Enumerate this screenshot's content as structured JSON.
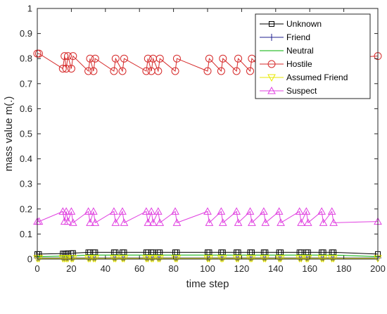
{
  "chart_data": {
    "type": "line",
    "xlabel": "time step",
    "ylabel": "mass value m(.)",
    "xlim": [
      0,
      200
    ],
    "ylim": [
      0,
      1
    ],
    "xticks": [
      0,
      20,
      40,
      60,
      80,
      100,
      120,
      140,
      160,
      180,
      200
    ],
    "yticks": [
      0,
      0.1,
      0.2,
      0.3,
      0.4,
      0.5,
      0.6,
      0.7,
      0.8,
      0.9,
      1
    ],
    "grid": false,
    "legend_position": "top-right",
    "x": [
      0,
      1,
      15,
      16,
      17,
      18,
      20,
      21,
      30,
      31,
      33,
      34,
      45,
      46,
      50,
      51,
      64,
      65,
      67,
      68,
      71,
      72,
      81,
      82,
      100,
      101,
      108,
      109,
      117,
      118,
      125,
      126,
      133,
      134,
      142,
      143,
      154,
      155,
      158,
      159,
      167,
      168,
      173,
      174,
      200
    ],
    "series": [
      {
        "name": "Unknown",
        "color": "#000000",
        "marker": "square",
        "y": [
          0.02,
          0.02,
          0.022,
          0.022,
          0.022,
          0.023,
          0.023,
          0.024,
          0.027,
          0.027,
          0.027,
          0.027,
          0.027,
          0.027,
          0.027,
          0.027,
          0.027,
          0.027,
          0.027,
          0.027,
          0.027,
          0.027,
          0.027,
          0.027,
          0.027,
          0.027,
          0.027,
          0.027,
          0.027,
          0.027,
          0.027,
          0.027,
          0.027,
          0.027,
          0.027,
          0.027,
          0.027,
          0.027,
          0.027,
          0.027,
          0.027,
          0.027,
          0.027,
          0.027,
          0.02
        ]
      },
      {
        "name": "Friend",
        "color": "#1f1f8f",
        "marker": "plus",
        "y": [
          0.005,
          0.005,
          0.005,
          0.005,
          0.005,
          0.005,
          0.005,
          0.005,
          0.005,
          0.005,
          0.005,
          0.005,
          0.005,
          0.005,
          0.005,
          0.005,
          0.005,
          0.005,
          0.005,
          0.005,
          0.005,
          0.005,
          0.005,
          0.005,
          0.005,
          0.005,
          0.005,
          0.005,
          0.005,
          0.005,
          0.005,
          0.005,
          0.005,
          0.005,
          0.005,
          0.005,
          0.005,
          0.005,
          0.005,
          0.005,
          0.005,
          0.005,
          0.005,
          0.005,
          0.005
        ]
      },
      {
        "name": "Neutral",
        "color": "#00b000",
        "marker": "none",
        "y": [
          0.01,
          0.01,
          0.012,
          0.012,
          0.012,
          0.012,
          0.012,
          0.013,
          0.016,
          0.016,
          0.016,
          0.016,
          0.016,
          0.016,
          0.016,
          0.016,
          0.016,
          0.016,
          0.016,
          0.016,
          0.016,
          0.016,
          0.016,
          0.016,
          0.016,
          0.016,
          0.016,
          0.016,
          0.016,
          0.016,
          0.016,
          0.016,
          0.016,
          0.016,
          0.016,
          0.016,
          0.016,
          0.016,
          0.016,
          0.016,
          0.016,
          0.016,
          0.016,
          0.016,
          0.01
        ]
      },
      {
        "name": "Hostile",
        "color": "#d62a2a",
        "marker": "circle",
        "y": [
          0.82,
          0.82,
          0.76,
          0.81,
          0.76,
          0.81,
          0.76,
          0.81,
          0.75,
          0.8,
          0.75,
          0.8,
          0.75,
          0.8,
          0.75,
          0.8,
          0.75,
          0.8,
          0.75,
          0.8,
          0.75,
          0.8,
          0.75,
          0.8,
          0.75,
          0.8,
          0.75,
          0.8,
          0.75,
          0.8,
          0.75,
          0.8,
          0.75,
          0.8,
          0.75,
          0.8,
          0.75,
          0.8,
          0.75,
          0.8,
          0.75,
          0.8,
          0.75,
          0.8,
          0.81
        ]
      },
      {
        "name": "Assumed Friend",
        "color": "#e8e800",
        "marker": "triangle-down",
        "y": [
          0.003,
          0.003,
          0.003,
          0.003,
          0.003,
          0.003,
          0.003,
          0.003,
          0.003,
          0.003,
          0.003,
          0.003,
          0.003,
          0.003,
          0.003,
          0.003,
          0.003,
          0.003,
          0.003,
          0.003,
          0.003,
          0.003,
          0.003,
          0.003,
          0.003,
          0.003,
          0.003,
          0.003,
          0.003,
          0.003,
          0.003,
          0.003,
          0.003,
          0.003,
          0.003,
          0.003,
          0.003,
          0.003,
          0.003,
          0.003,
          0.003,
          0.003,
          0.003,
          0.003,
          0.003
        ]
      },
      {
        "name": "Suspect",
        "color": "#e040e0",
        "marker": "triangle-up",
        "y": [
          0.15,
          0.15,
          0.19,
          0.15,
          0.19,
          0.15,
          0.19,
          0.145,
          0.19,
          0.145,
          0.19,
          0.145,
          0.19,
          0.145,
          0.19,
          0.145,
          0.19,
          0.145,
          0.19,
          0.145,
          0.19,
          0.145,
          0.19,
          0.145,
          0.19,
          0.145,
          0.19,
          0.145,
          0.19,
          0.145,
          0.19,
          0.145,
          0.19,
          0.145,
          0.19,
          0.145,
          0.19,
          0.145,
          0.19,
          0.145,
          0.19,
          0.145,
          0.19,
          0.145,
          0.15
        ]
      }
    ]
  }
}
